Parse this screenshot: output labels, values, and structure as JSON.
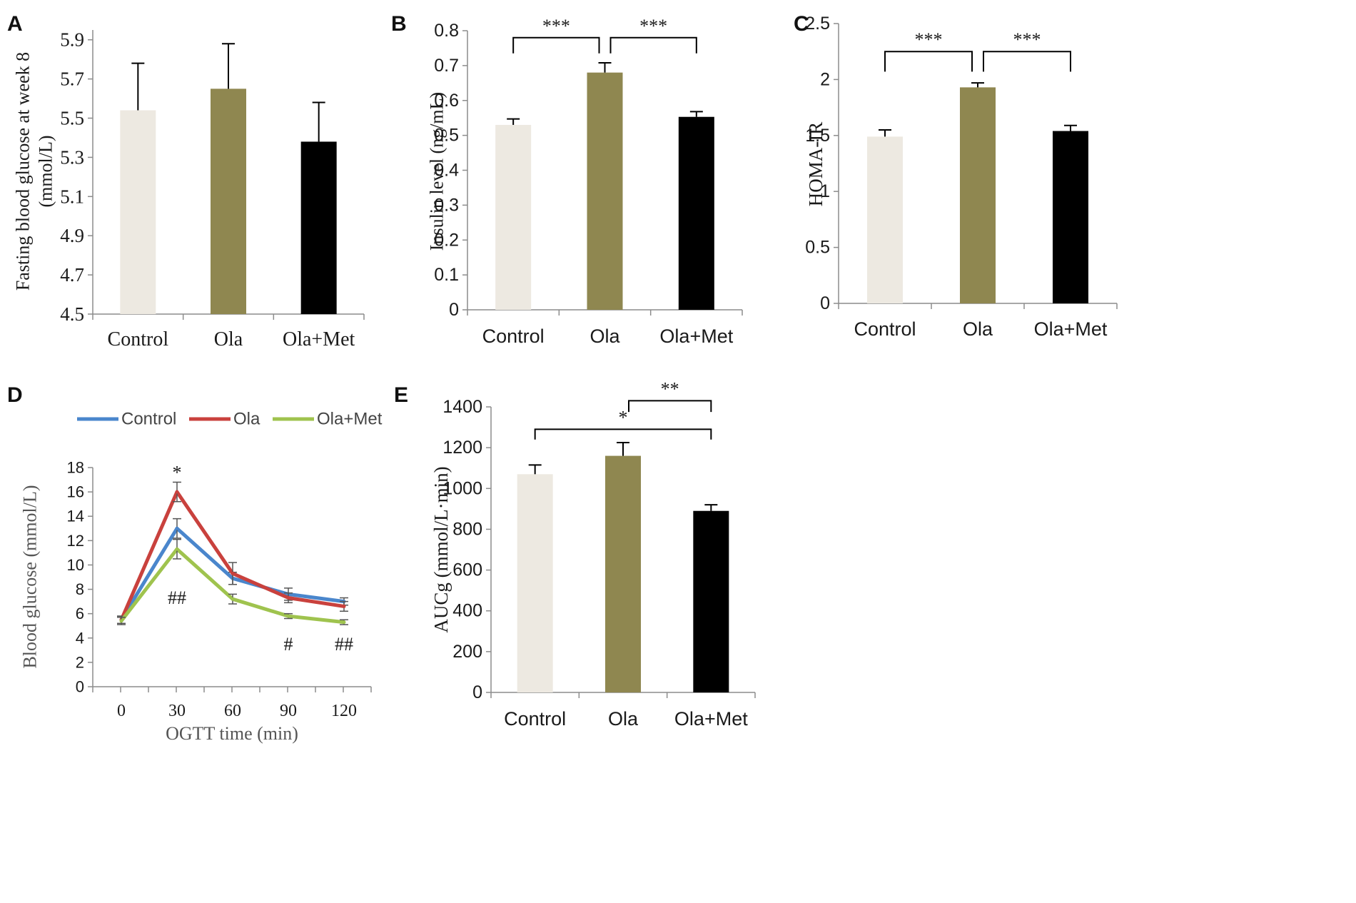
{
  "colors": {
    "control": "#ede9e1",
    "ola": "#8f8750",
    "olamet": "#000000",
    "line_control": "#4a86cc",
    "line_ola": "#c9413d",
    "line_olamet": "#9fc34e",
    "axis": "#8c8c8c",
    "text": "#1a1a1a"
  },
  "chart_data": [
    {
      "id": "A",
      "type": "bar",
      "letter": "A",
      "categories": [
        "Control",
        "Ola",
        "Ola+Met"
      ],
      "values": [
        5.54,
        5.65,
        5.38
      ],
      "errors": [
        0.24,
        0.23,
        0.2
      ],
      "ylabel": "Fasting blood glucose at week 8 (mmol/L)",
      "ylabel_lines": [
        "Fasting blood glucose at week 8",
        "(mmol/L)"
      ],
      "ylim": [
        4.5,
        5.95
      ],
      "yticks": [
        "4.5",
        "4.7",
        "4.9",
        "5.1",
        "5.3",
        "5.5",
        "5.7",
        "5.9"
      ],
      "yticks_values": [
        4.5,
        4.7,
        4.9,
        5.1,
        5.3,
        5.5,
        5.7,
        5.9
      ],
      "brackets": []
    },
    {
      "id": "B",
      "type": "bar",
      "letter": "B",
      "categories": [
        "Control",
        "Ola",
        "Ola+Met"
      ],
      "values": [
        0.53,
        0.68,
        0.553
      ],
      "errors": [
        0.017,
        0.028,
        0.015
      ],
      "ylabel": "Insulin level (ng/mL)",
      "ylim": [
        0,
        0.8
      ],
      "yticks": [
        "0",
        "0.1",
        "0.2",
        "0.3",
        "0.4",
        "0.5",
        "0.6",
        "0.7",
        "0.8"
      ],
      "yticks_values": [
        0,
        0.1,
        0.2,
        0.3,
        0.4,
        0.5,
        0.6,
        0.7,
        0.8
      ],
      "brackets": [
        {
          "from": 0,
          "to": 1,
          "y": 0.78,
          "drop": 0.045,
          "label": "***"
        },
        {
          "from": 1,
          "to": 2,
          "y": 0.78,
          "drop": 0.045,
          "label": "***"
        }
      ]
    },
    {
      "id": "C",
      "type": "bar",
      "letter": "C",
      "categories": [
        "Control",
        "Ola",
        "Ola+Met"
      ],
      "values": [
        1.49,
        1.93,
        1.54
      ],
      "errors": [
        0.06,
        0.04,
        0.05
      ],
      "ylabel": "HOMA-IR",
      "ylim": [
        0,
        2.5
      ],
      "yticks": [
        "0",
        "0.5",
        "1",
        "1.5",
        "2",
        "2.5"
      ],
      "yticks_values": [
        0,
        0.5,
        1,
        1.5,
        2,
        2.5
      ],
      "brackets": [
        {
          "from": 0,
          "to": 1,
          "y": 2.25,
          "drop": 0.18,
          "label": "***"
        },
        {
          "from": 1,
          "to": 2,
          "y": 2.25,
          "drop": 0.18,
          "label": "***"
        }
      ]
    },
    {
      "id": "D",
      "type": "line",
      "letter": "D",
      "x": [
        0,
        30,
        60,
        90,
        120
      ],
      "series": [
        {
          "name": "Control",
          "values": [
            5.5,
            13.0,
            8.9,
            7.6,
            7.0
          ],
          "errors": [
            0.3,
            0.8,
            0.5,
            0.5,
            0.3
          ]
        },
        {
          "name": "Ola",
          "values": [
            5.5,
            16.0,
            9.3,
            7.3,
            6.6
          ],
          "errors": [
            0.3,
            0.8,
            0.9,
            0.4,
            0.4
          ]
        },
        {
          "name": "Ola+Met",
          "values": [
            5.4,
            11.3,
            7.2,
            5.8,
            5.3
          ],
          "errors": [
            0.3,
            0.8,
            0.4,
            0.2,
            0.2
          ]
        }
      ],
      "xlabel": "OGTT time (min)",
      "ylabel": "Blood glucose  (mmol/L)",
      "xticks": [
        "0",
        "30",
        "60",
        "90",
        "120"
      ],
      "ylim": [
        0,
        18
      ],
      "yticks": [
        "0",
        "2",
        "4",
        "6",
        "8",
        "10",
        "12",
        "14",
        "16",
        "18"
      ],
      "yticks_values": [
        0,
        2,
        4,
        6,
        8,
        10,
        12,
        14,
        16,
        18
      ],
      "legend": [
        "Control",
        "Ola",
        "Ola+Met"
      ],
      "annotations": [
        {
          "x": 30,
          "y": 17.6,
          "text": "*"
        },
        {
          "x": 30,
          "y": 7.3,
          "text": "##"
        },
        {
          "x": 90,
          "y": 3.5,
          "text": "#"
        },
        {
          "x": 120,
          "y": 3.5,
          "text": "##"
        }
      ]
    },
    {
      "id": "E",
      "type": "bar",
      "letter": "E",
      "categories": [
        "Control",
        "Ola",
        "Ola+Met"
      ],
      "values": [
        1070,
        1160,
        890
      ],
      "errors": [
        45,
        65,
        30
      ],
      "ylabel": "AUCg  (mmol/L·min)",
      "ylim": [
        0,
        1400
      ],
      "yticks": [
        "0",
        "200",
        "400",
        "600",
        "800",
        "1000",
        "1200",
        "1400"
      ],
      "yticks_values": [
        0,
        200,
        400,
        600,
        800,
        1000,
        1200,
        1400
      ],
      "brackets": [
        {
          "from": 0,
          "to": 2,
          "y": 1290,
          "drop": 50,
          "label": "*"
        },
        {
          "from": 1,
          "to": 2,
          "y": 1430,
          "drop": 55,
          "label": "**"
        }
      ]
    }
  ]
}
